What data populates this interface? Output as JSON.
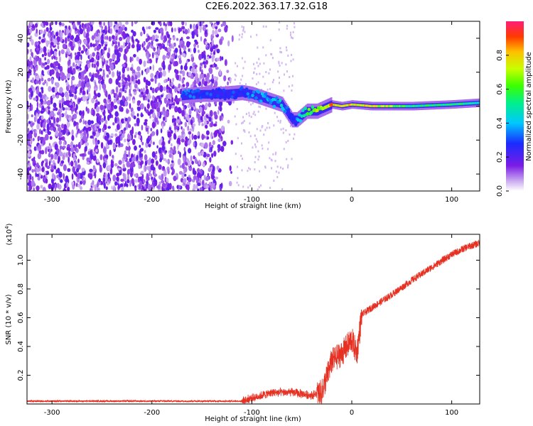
{
  "title": "C2E6.2022.363.17.32.G18",
  "colors": {
    "snr_line": "#e53022",
    "frame": "#000000"
  },
  "chart_data": [
    {
      "type": "heatmap",
      "title": "",
      "xlabel": "Height of straight line (km)",
      "ylabel": "Frequency (Hz)",
      "xlim": [
        -325,
        128
      ],
      "ylim": [
        -50,
        50
      ],
      "x_ticks": [
        -300,
        -200,
        -100,
        0,
        100
      ],
      "y_ticks": [
        -40,
        -20,
        0,
        20,
        40
      ],
      "colorbar": {
        "label": "Normalized spectral amplitude",
        "range": [
          0,
          1
        ],
        "ticks": [
          0.0,
          0.2,
          0.4,
          0.6,
          0.8
        ],
        "colormap": "rainbow"
      },
      "signal_track": {
        "x": [
          -170,
          -150,
          -130,
          -110,
          -100,
          -90,
          -80,
          -70,
          -60,
          -55,
          -45,
          -35,
          -20,
          -10,
          0,
          20,
          60,
          100,
          128
        ],
        "freq": [
          6,
          7,
          7,
          8,
          7,
          5,
          3,
          1,
          -8,
          -8,
          -3,
          -3,
          1,
          0,
          1,
          0,
          0,
          1,
          2
        ],
        "amplitude": [
          0.35,
          0.3,
          0.3,
          0.3,
          0.35,
          0.4,
          0.4,
          0.45,
          0.3,
          0.35,
          0.6,
          0.7,
          0.85,
          0.8,
          0.85,
          0.8,
          0.55,
          0.55,
          0.5
        ]
      },
      "noise_region_x": [
        -325,
        -118
      ]
    },
    {
      "type": "line",
      "title": "",
      "xlabel": "Height of straight line (km)",
      "ylabel": "SNR (10 * v/v)",
      "y_multiplier": "(x10",
      "y_multiplier_exp": "4",
      "y_multiplier_close": ")",
      "xlim": [
        -325,
        128
      ],
      "ylim": [
        0,
        1.18
      ],
      "x_ticks": [
        -300,
        -200,
        -100,
        0,
        100
      ],
      "y_ticks": [
        0.2,
        0.4,
        0.6,
        0.8,
        1.0
      ],
      "series": [
        {
          "x": [
            -325,
            -250,
            -150,
            -110,
            -100,
            -80,
            -60,
            -40,
            -30,
            -20,
            -10,
            0,
            5,
            10,
            20,
            40,
            60,
            80,
            100,
            115,
            128
          ],
          "y": [
            0.02,
            0.02,
            0.02,
            0.02,
            0.04,
            0.08,
            0.08,
            0.06,
            0.08,
            0.3,
            0.35,
            0.45,
            0.35,
            0.62,
            0.67,
            0.76,
            0.86,
            0.95,
            1.04,
            1.09,
            1.12
          ]
        }
      ]
    }
  ]
}
